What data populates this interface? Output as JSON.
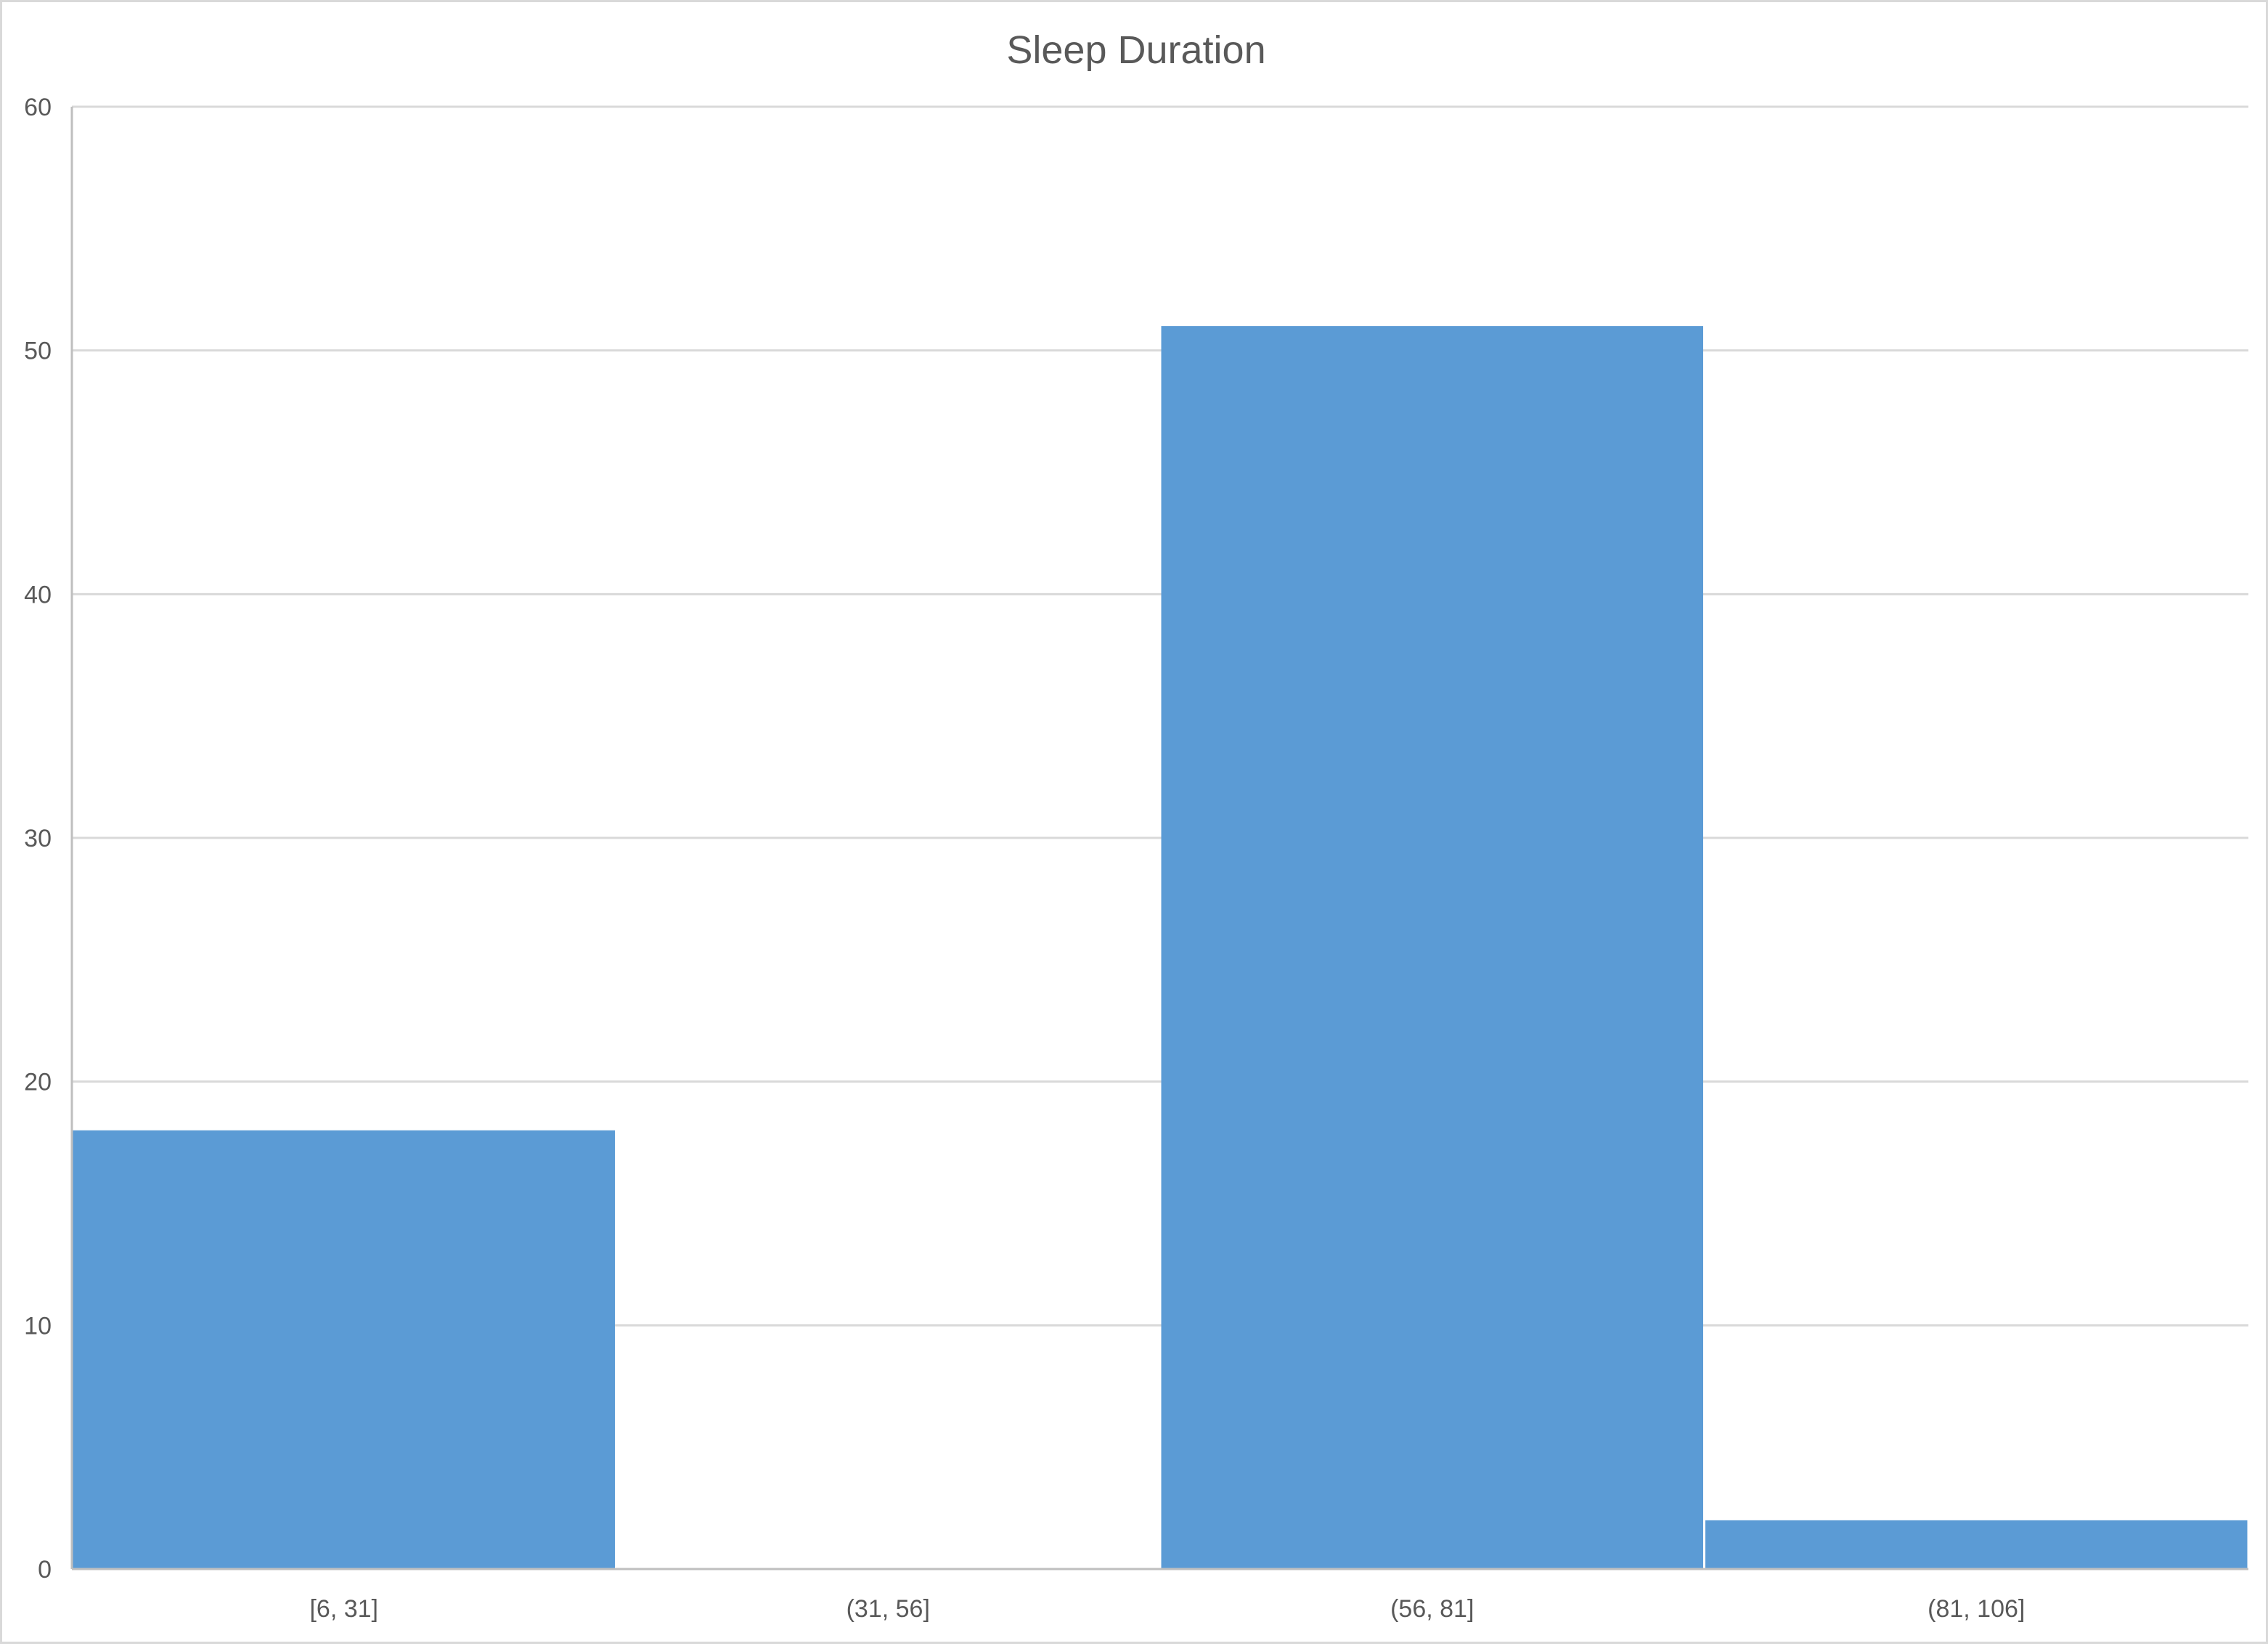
{
  "chart_data": {
    "type": "bar",
    "title": "Sleep Duration",
    "categories": [
      "[6, 31]",
      "(31, 56]",
      "(56, 81]",
      "(81, 106]"
    ],
    "values": [
      18,
      0,
      51,
      2
    ],
    "ylim": [
      0,
      60
    ],
    "yticks": [
      0,
      10,
      20,
      30,
      40,
      50,
      60
    ],
    "grid": true,
    "legend": "none",
    "bar_color": "#5b9bd5"
  }
}
